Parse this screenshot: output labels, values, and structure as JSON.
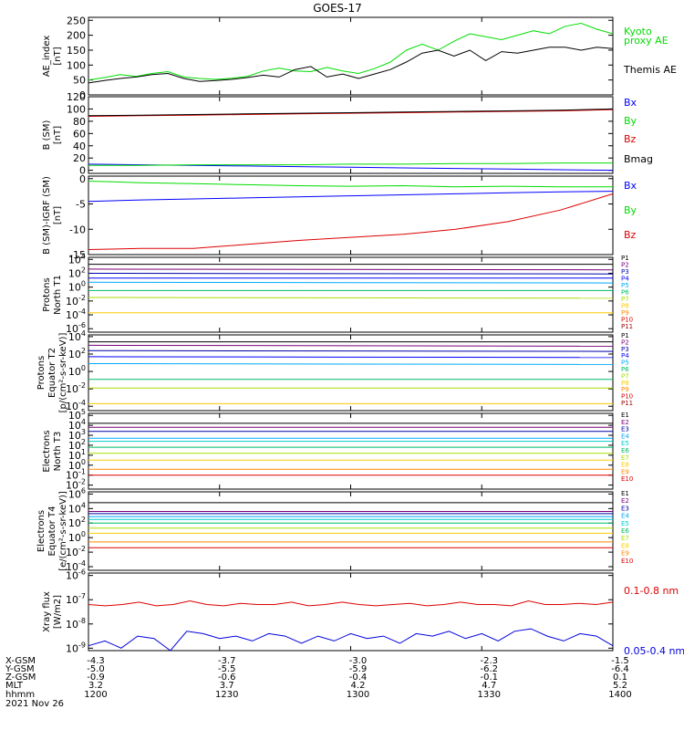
{
  "title": "GOES-17",
  "chart_data": [
    {
      "type": "line",
      "ylabel": [
        "AE_index",
        "[nT]"
      ],
      "ylim": [
        0,
        260
      ],
      "yticks": [
        "0",
        "50",
        "100",
        "150",
        "200",
        "250"
      ],
      "series": [
        {
          "name": "Kyoto",
          "color": "#00dd00",
          "values": [
            50,
            58,
            68,
            62,
            72,
            78,
            60,
            55,
            52,
            56,
            62,
            80,
            90,
            80,
            78,
            92,
            80,
            72,
            88,
            110,
            150,
            170,
            150,
            180,
            205,
            195,
            185,
            200,
            215,
            205,
            230,
            240,
            220,
            205
          ]
        },
        {
          "name": "Themis AE",
          "color": "#000000",
          "values": [
            40,
            48,
            55,
            60,
            68,
            72,
            55,
            45,
            48,
            52,
            58,
            66,
            60,
            85,
            95,
            60,
            70,
            55,
            70,
            85,
            110,
            140,
            150,
            130,
            150,
            115,
            145,
            140,
            150,
            160,
            160,
            150,
            160,
            155
          ]
        }
      ],
      "legend": [
        {
          "text": "Kyoto",
          "color": "#00dd00"
        },
        {
          "text": "proxy AE",
          "color": "#00dd00"
        },
        {
          "text": "Themis AE",
          "color": "#000000"
        }
      ]
    },
    {
      "type": "line",
      "ylabel": [
        "B (SM)",
        "[nT]"
      ],
      "ylim": [
        -5,
        120
      ],
      "yticks": [
        "0",
        "20",
        "40",
        "60",
        "80",
        "100",
        "120"
      ],
      "series": [
        {
          "name": "Bx",
          "color": "#0000ff",
          "values": [
            10,
            9,
            8,
            7,
            6,
            5,
            4,
            3,
            2,
            1,
            0
          ]
        },
        {
          "name": "By",
          "color": "#00dd00",
          "values": [
            8,
            8,
            9,
            9,
            9,
            10,
            10,
            11,
            11,
            12,
            12
          ]
        },
        {
          "name": "Bz",
          "color": "#dd0000",
          "values": [
            88,
            89,
            90,
            91,
            92,
            93,
            94,
            95,
            96,
            97,
            99
          ]
        },
        {
          "name": "Bmag",
          "color": "#000000",
          "values": [
            89,
            90,
            91,
            92,
            93,
            94,
            95,
            96,
            97,
            98,
            100
          ]
        }
      ],
      "legend": [
        {
          "text": "Bx",
          "color": "#0000ff"
        },
        {
          "text": "By",
          "color": "#00dd00"
        },
        {
          "text": "Bz",
          "color": "#dd0000"
        },
        {
          "text": "Bmag",
          "color": "#000000"
        }
      ]
    },
    {
      "type": "line",
      "ylabel": [
        "B (SM)-IGRF (SM)",
        "[nT]"
      ],
      "ylim": [
        -15,
        0.5
      ],
      "yticks": [
        "-15",
        "-10",
        "-5",
        "0"
      ],
      "series": [
        {
          "name": "Bx",
          "color": "#0000ff",
          "values": [
            -4.5,
            -4.2,
            -4.0,
            -3.8,
            -3.6,
            -3.4,
            -3.2,
            -3.0,
            -2.8,
            -2.6,
            -2.5
          ]
        },
        {
          "name": "By",
          "color": "#00dd00",
          "values": [
            -0.5,
            -0.8,
            -1.0,
            -1.2,
            -1.4,
            -1.5,
            -1.4,
            -1.6,
            -1.5,
            -1.6,
            -1.6
          ]
        },
        {
          "name": "Bz",
          "color": "#dd0000",
          "values": [
            -14.0,
            -13.8,
            -13.8,
            -13.0,
            -12.2,
            -11.6,
            -11.0,
            -10.0,
            -8.5,
            -6.2,
            -3.0
          ]
        }
      ],
      "legend": [
        {
          "text": "Bx",
          "color": "#0000ff"
        },
        {
          "text": "By",
          "color": "#00dd00"
        },
        {
          "text": "Bz",
          "color": "#dd0000"
        }
      ]
    },
    {
      "type": "line",
      "yscale": "log",
      "ylabel": [
        "Protons",
        "North T1"
      ],
      "ylim_exp": [
        -6.5,
        4.3
      ],
      "yticks": [
        4,
        2,
        0,
        -2,
        -4,
        -6
      ],
      "series": [
        {
          "name": "P1",
          "color": "#000000",
          "values": [
            3.3,
            3.3
          ]
        },
        {
          "name": "P2",
          "color": "#770077",
          "values": [
            2.6,
            2.5
          ]
        },
        {
          "name": "P3",
          "color": "#0000aa",
          "values": [
            2.0,
            1.9
          ]
        },
        {
          "name": "P4",
          "color": "#0000ff",
          "values": [
            1.3,
            1.3
          ]
        },
        {
          "name": "P5",
          "color": "#00aaff",
          "values": [
            0.7,
            0.6
          ]
        },
        {
          "name": "P6",
          "color": "#00bb66",
          "values": [
            -0.5,
            -0.5
          ]
        },
        {
          "name": "P7",
          "color": "#aadd00",
          "values": [
            -1.5,
            -1.6
          ]
        },
        {
          "name": "P8",
          "color": "#ffcc00",
          "values": [
            -3.7,
            -3.7
          ]
        }
      ],
      "legend": [
        {
          "text": "P1",
          "color": "#000000"
        },
        {
          "text": "P2",
          "color": "#770077"
        },
        {
          "text": "P3",
          "color": "#0000aa"
        },
        {
          "text": "P4",
          "color": "#0000ff"
        },
        {
          "text": "P5",
          "color": "#00aaff"
        },
        {
          "text": "P6",
          "color": "#00bb66"
        },
        {
          "text": "P7",
          "color": "#aadd00"
        },
        {
          "text": "P8",
          "color": "#ffcc00"
        },
        {
          "text": "P9",
          "color": "#ff8800"
        },
        {
          "text": "P10",
          "color": "#dd0000"
        },
        {
          "text": "P11",
          "color": "#990000"
        }
      ]
    },
    {
      "type": "line",
      "yscale": "log",
      "ylabel": [
        "Protons",
        "Equator T2",
        "[p/(cm²-s-sr-keV)]"
      ],
      "ylim_exp": [
        -4.5,
        4.2
      ],
      "yticks": [
        4,
        2,
        0,
        -2,
        -4
      ],
      "series": [
        {
          "name": "P1",
          "color": "#000000",
          "values": [
            3.4,
            3.4
          ]
        },
        {
          "name": "P2",
          "color": "#770077",
          "values": [
            3.0,
            2.9
          ]
        },
        {
          "name": "P3",
          "color": "#0000aa",
          "values": [
            2.4,
            2.3
          ]
        },
        {
          "name": "P4",
          "color": "#0000ff",
          "values": [
            1.7,
            1.6
          ]
        },
        {
          "name": "P5",
          "color": "#00aaff",
          "values": [
            0.9,
            0.8
          ]
        },
        {
          "name": "P6",
          "color": "#00bb66",
          "values": [
            -0.9,
            -0.9
          ]
        },
        {
          "name": "P7",
          "color": "#aadd00",
          "values": [
            -1.9,
            -1.9
          ]
        },
        {
          "name": "P8",
          "color": "#ffcc00",
          "values": [
            -3.7,
            -3.7
          ]
        }
      ],
      "legend": [
        {
          "text": "P1",
          "color": "#000000"
        },
        {
          "text": "P2",
          "color": "#770077"
        },
        {
          "text": "P3",
          "color": "#0000aa"
        },
        {
          "text": "P4",
          "color": "#0000ff"
        },
        {
          "text": "P5",
          "color": "#00aaff"
        },
        {
          "text": "P6",
          "color": "#00bb66"
        },
        {
          "text": "P7",
          "color": "#aadd00"
        },
        {
          "text": "P8",
          "color": "#ffcc00"
        },
        {
          "text": "P9",
          "color": "#ff8800"
        },
        {
          "text": "P10",
          "color": "#dd0000"
        },
        {
          "text": "P11",
          "color": "#990000"
        }
      ]
    },
    {
      "type": "line",
      "yscale": "log",
      "ylabel": [
        "Electrons",
        "North T3"
      ],
      "ylim_exp": [
        -2.4,
        5.2
      ],
      "yticks": [
        5,
        4,
        3,
        2,
        1,
        0,
        -1,
        -2
      ],
      "series": [
        {
          "name": "E1",
          "color": "#000000",
          "values": [
            4.2,
            4.2
          ]
        },
        {
          "name": "E2",
          "color": "#770077",
          "values": [
            3.8,
            3.8
          ]
        },
        {
          "name": "E3",
          "color": "#0000aa",
          "values": [
            3.4,
            3.4
          ]
        },
        {
          "name": "E4",
          "color": "#00aaff",
          "values": [
            2.7,
            2.7
          ]
        },
        {
          "name": "E5",
          "color": "#00cccc",
          "values": [
            2.4,
            2.4
          ]
        },
        {
          "name": "E6",
          "color": "#00bb66",
          "values": [
            1.8,
            1.8
          ]
        },
        {
          "name": "E7",
          "color": "#aadd00",
          "values": [
            1.2,
            1.2
          ]
        },
        {
          "name": "E8",
          "color": "#ffcc00",
          "values": [
            0.5,
            0.5
          ]
        },
        {
          "name": "E9",
          "color": "#ff8800",
          "values": [
            -0.4,
            -0.4
          ]
        },
        {
          "name": "E10",
          "color": "#dd0000",
          "values": [
            -1.0,
            -1.0
          ]
        }
      ],
      "legend": [
        {
          "text": "E1",
          "color": "#000000"
        },
        {
          "text": "E2",
          "color": "#770077"
        },
        {
          "text": "E3",
          "color": "#0000aa"
        },
        {
          "text": "E4",
          "color": "#00aaff"
        },
        {
          "text": "E5",
          "color": "#00cccc"
        },
        {
          "text": "E6",
          "color": "#00bb66"
        },
        {
          "text": "E7",
          "color": "#aadd00"
        },
        {
          "text": "E8",
          "color": "#ffcc00"
        },
        {
          "text": "E9",
          "color": "#ff8800"
        },
        {
          "text": "E10",
          "color": "#dd0000"
        }
      ]
    },
    {
      "type": "line",
      "yscale": "log",
      "ylabel": [
        "Electrons",
        "Equator T4",
        "[e/(cm²-s-sr-keV)]"
      ],
      "ylim_exp": [
        -4.5,
        6.3
      ],
      "yticks": [
        6,
        4,
        2,
        0,
        -2,
        -4
      ],
      "series": [
        {
          "name": "E1",
          "color": "#000000",
          "values": [
            4.8,
            4.8
          ]
        },
        {
          "name": "E2",
          "color": "#770077",
          "values": [
            3.6,
            3.6
          ]
        },
        {
          "name": "E3",
          "color": "#0000aa",
          "values": [
            3.3,
            3.3
          ]
        },
        {
          "name": "E4",
          "color": "#00aaff",
          "values": [
            2.9,
            2.9
          ]
        },
        {
          "name": "E5",
          "color": "#00cccc",
          "values": [
            2.5,
            2.5
          ]
        },
        {
          "name": "E6",
          "color": "#00bb66",
          "values": [
            2.0,
            2.0
          ]
        },
        {
          "name": "E7",
          "color": "#aadd00",
          "values": [
            1.3,
            1.3
          ]
        },
        {
          "name": "E8",
          "color": "#ffcc00",
          "values": [
            0.6,
            0.6
          ]
        },
        {
          "name": "E9",
          "color": "#ff8800",
          "values": [
            -0.6,
            -0.6
          ]
        },
        {
          "name": "E10",
          "color": "#dd0000",
          "values": [
            -1.4,
            -1.4
          ]
        }
      ],
      "legend": [
        {
          "text": "E1",
          "color": "#000000"
        },
        {
          "text": "E2",
          "color": "#770077"
        },
        {
          "text": "E3",
          "color": "#0000aa"
        },
        {
          "text": "E4",
          "color": "#00aaff"
        },
        {
          "text": "E5",
          "color": "#00cccc"
        },
        {
          "text": "E6",
          "color": "#00bb66"
        },
        {
          "text": "E7",
          "color": "#aadd00"
        },
        {
          "text": "E8",
          "color": "#ffcc00"
        },
        {
          "text": "E9",
          "color": "#ff8800"
        },
        {
          "text": "E10",
          "color": "#dd0000"
        }
      ]
    },
    {
      "type": "line",
      "yscale": "log",
      "ylabel": [
        "Xray flux",
        "[W/m2]"
      ],
      "ylim_exp": [
        -9.1,
        -5.9
      ],
      "yticks": [
        -6,
        -7,
        -8,
        -9
      ],
      "series": [
        {
          "name": "0.1-0.8 nm",
          "color": "#dd0000",
          "values": [
            -7.2,
            -7.25,
            -7.2,
            -7.1,
            -7.25,
            -7.2,
            -7.05,
            -7.2,
            -7.25,
            -7.15,
            -7.2,
            -7.2,
            -7.1,
            -7.25,
            -7.2,
            -7.1,
            -7.2,
            -7.25,
            -7.2,
            -7.15,
            -7.25,
            -7.2,
            -7.1,
            -7.2,
            -7.2,
            -7.25,
            -7.05,
            -7.2,
            -7.2,
            -7.15,
            -7.2,
            -7.1
          ]
        },
        {
          "name": "0.05-0.4 nm",
          "color": "#0000dd",
          "values": [
            -8.9,
            -8.7,
            -9.0,
            -8.5,
            -8.6,
            -9.1,
            -8.3,
            -8.4,
            -8.6,
            -8.5,
            -8.7,
            -8.4,
            -8.5,
            -8.8,
            -8.5,
            -8.7,
            -8.4,
            -8.6,
            -8.5,
            -8.8,
            -8.4,
            -8.5,
            -8.3,
            -8.6,
            -8.4,
            -8.7,
            -8.3,
            -8.2,
            -8.5,
            -8.7,
            -8.4,
            -8.5,
            -8.9
          ]
        }
      ],
      "legend": [
        {
          "text": "0.1-0.8 nm",
          "color": "#dd0000"
        },
        {
          "text": "0.05-0.4 nm",
          "color": "#0000dd"
        }
      ]
    }
  ],
  "footer": {
    "row_labels": [
      "X-GSM",
      "Y-GSM",
      "Z-GSM",
      "MLT",
      "hhmm"
    ],
    "date": "2021 Nov 26",
    "columns": [
      {
        "values": [
          "-4.3",
          "-5.0",
          "-0.9",
          "3.2",
          "1200"
        ]
      },
      {
        "values": [
          "-3.7",
          "-5.5",
          "-0.6",
          "3.7",
          "1230"
        ]
      },
      {
        "values": [
          "-3.0",
          "-5.9",
          "-0.4",
          "4.2",
          "1300"
        ]
      },
      {
        "values": [
          "-2.3",
          "-6.2",
          "-0.1",
          "4.7",
          "1330"
        ]
      },
      {
        "values": [
          "-1.5",
          "-6.4",
          "0.1",
          "5.2",
          "1400"
        ]
      }
    ]
  }
}
